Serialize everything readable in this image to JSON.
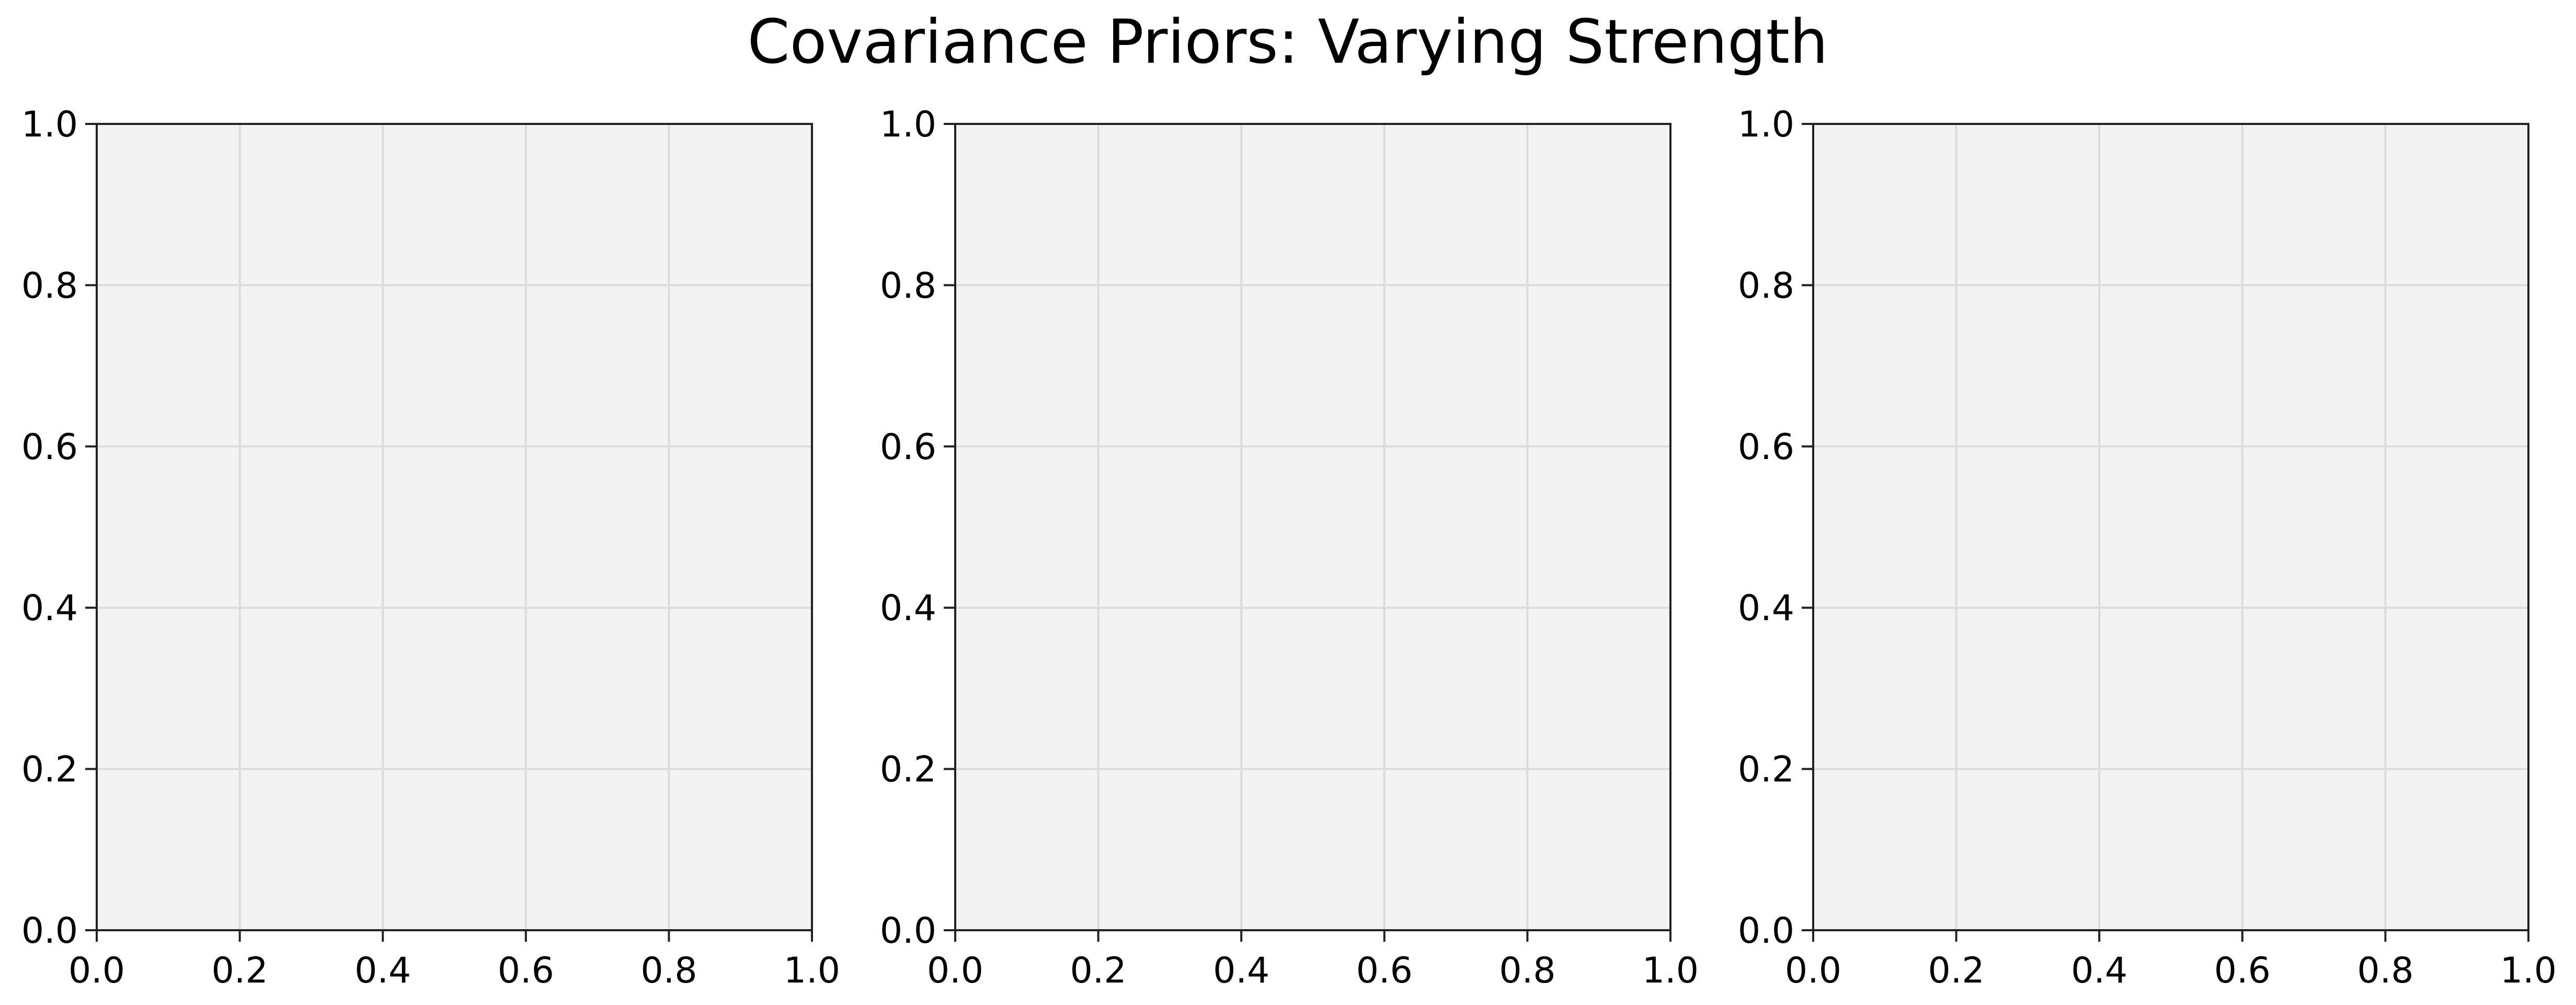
{
  "figure": {
    "title": "Covariance Priors: Varying Strength"
  },
  "colors": {
    "axes_background": "#f3f3f3",
    "grid": "#dcdcdc",
    "spine": "#222222",
    "text": "#000000"
  },
  "chart_data": [
    {
      "type": "scatter",
      "title": "",
      "xlabel": "",
      "ylabel": "",
      "xlim": [
        0.0,
        1.0
      ],
      "ylim": [
        0.0,
        1.0
      ],
      "xticks": [
        "0.0",
        "0.2",
        "0.4",
        "0.6",
        "0.8",
        "1.0"
      ],
      "yticks": [
        "0.0",
        "0.2",
        "0.4",
        "0.6",
        "0.8",
        "1.0"
      ],
      "grid": true,
      "series": []
    },
    {
      "type": "scatter",
      "title": "",
      "xlabel": "",
      "ylabel": "",
      "xlim": [
        0.0,
        1.0
      ],
      "ylim": [
        0.0,
        1.0
      ],
      "xticks": [
        "0.0",
        "0.2",
        "0.4",
        "0.6",
        "0.8",
        "1.0"
      ],
      "yticks": [
        "0.0",
        "0.2",
        "0.4",
        "0.6",
        "0.8",
        "1.0"
      ],
      "grid": true,
      "series": []
    },
    {
      "type": "scatter",
      "title": "",
      "xlabel": "",
      "ylabel": "",
      "xlim": [
        0.0,
        1.0
      ],
      "ylim": [
        0.0,
        1.0
      ],
      "xticks": [
        "0.0",
        "0.2",
        "0.4",
        "0.6",
        "0.8",
        "1.0"
      ],
      "yticks": [
        "0.0",
        "0.2",
        "0.4",
        "0.6",
        "0.8",
        "1.0"
      ],
      "grid": true,
      "series": []
    }
  ]
}
